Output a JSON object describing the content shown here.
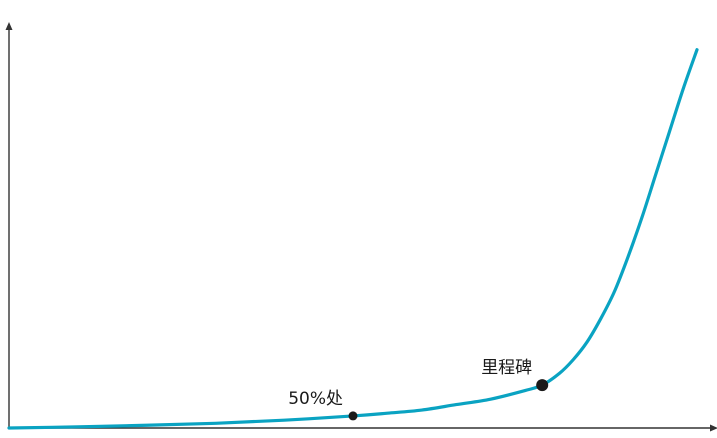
{
  "chart_data": {
    "type": "line",
    "title": "",
    "xlabel": "",
    "ylabel": "",
    "grid": false,
    "legend": "none",
    "xlim": [
      0,
      100
    ],
    "ylim": [
      0,
      100
    ],
    "series": [
      {
        "color": "#0aa3c2",
        "x": [
          0,
          10,
          20,
          30,
          40,
          50,
          55,
          60,
          65,
          70,
          75,
          77.5,
          80,
          82,
          84,
          86,
          88,
          90,
          92,
          94,
          96,
          98,
          100
        ],
        "y": [
          0,
          0.3,
          0.7,
          1.2,
          2,
          3.1,
          3.8,
          4.6,
          6,
          7.4,
          9.6,
          11,
          14,
          17.5,
          22,
          28,
          35,
          44,
          54,
          65,
          76,
          87,
          97
        ]
      }
    ],
    "markers": [
      {
        "label": "50%处",
        "x": 50,
        "y": 3.1,
        "color": "#1a1a1a"
      },
      {
        "label": "里程碑",
        "x": 77.5,
        "y": 11,
        "color": "#1a1a1a"
      }
    ],
    "axis_color": "#333333"
  }
}
